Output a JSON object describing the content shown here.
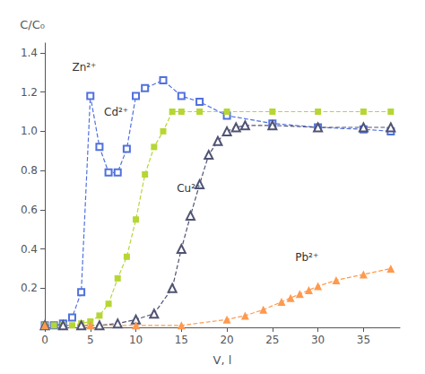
{
  "chart_data": {
    "type": "line",
    "xlabel": "V, l",
    "ylabel": "C/C₀",
    "xlim": [
      0,
      39
    ],
    "ylim": [
      0,
      1.45
    ],
    "xticks": [
      0,
      5,
      10,
      15,
      20,
      25,
      30,
      35
    ],
    "yticks": [
      0.2,
      0.4,
      0.6,
      0.8,
      {
        "value": 1.0,
        "label": "1.0"
      },
      1.2,
      1.4
    ],
    "grid": false,
    "series": [
      {
        "marker": "square_open",
        "line_style": "dashed",
        "x": [
          0,
          1,
          2,
          3,
          4,
          5,
          6,
          7,
          8,
          9,
          10,
          11,
          13,
          15,
          17,
          20,
          25,
          30,
          35,
          38
        ],
        "values": [
          0.01,
          0.01,
          0.02,
          0.05,
          0.18,
          1.18,
          0.92,
          0.79,
          0.79,
          0.91,
          1.18,
          1.22,
          1.26,
          1.18,
          1.15,
          1.08,
          1.04,
          1.02,
          1.01,
          1.0
        ]
      },
      {
        "marker": "square",
        "line_style": "dashed",
        "x": [
          0,
          1,
          2,
          3,
          4,
          5,
          6,
          7,
          8,
          9,
          10,
          11,
          12,
          13,
          14,
          15,
          17,
          20,
          25,
          30,
          35,
          38
        ],
        "values": [
          0.01,
          0.01,
          0.01,
          0.01,
          0.02,
          0.03,
          0.06,
          0.12,
          0.25,
          0.36,
          0.55,
          0.78,
          0.92,
          1.0,
          1.1,
          1.1,
          1.1,
          1.1,
          1.1,
          1.1,
          1.1,
          1.1
        ]
      },
      {
        "marker": "triangle_open",
        "line_style": "dashed",
        "x": [
          0,
          2,
          4,
          6,
          8,
          10,
          12,
          14,
          15,
          16,
          17,
          18,
          19,
          20,
          21,
          22,
          25,
          30,
          35,
          38
        ],
        "values": [
          0.01,
          0.01,
          0.01,
          0.01,
          0.02,
          0.04,
          0.07,
          0.2,
          0.4,
          0.57,
          0.73,
          0.88,
          0.95,
          1.0,
          1.02,
          1.03,
          1.03,
          1.02,
          1.02,
          1.02
        ]
      },
      {
        "marker": "triangle",
        "line_style": "dashed",
        "x": [
          0,
          5,
          10,
          15,
          20,
          22,
          24,
          26,
          27,
          28,
          29,
          30,
          32,
          35,
          38
        ],
        "values": [
          0.01,
          0.01,
          0.01,
          0.01,
          0.04,
          0.06,
          0.09,
          0.13,
          0.15,
          0.17,
          0.19,
          0.21,
          0.24,
          0.27,
          0.3
        ]
      }
    ],
    "annotations": [
      {
        "text": "Zn²⁺",
        "x": 3.0,
        "y": 1.3
      },
      {
        "text": "Cd²⁺",
        "x": 6.5,
        "y": 1.07
      },
      {
        "text": "Cu²⁺",
        "x": 14.5,
        "y": 0.68
      },
      {
        "text": "Pb²⁺",
        "x": 27.5,
        "y": 0.33
      }
    ]
  }
}
